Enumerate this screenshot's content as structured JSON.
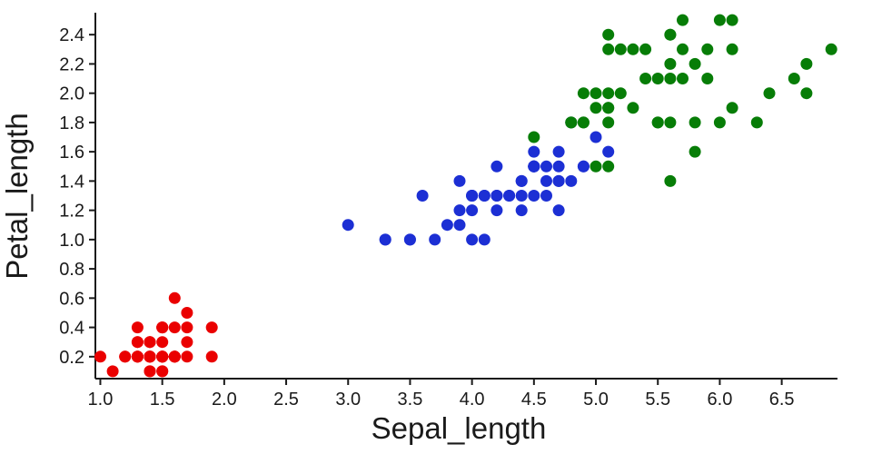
{
  "chart_data": {
    "type": "scatter",
    "title": "",
    "xlabel": "Sepal_length",
    "ylabel": "Petal_length",
    "xlim": [
      0.96,
      6.95
    ],
    "ylim": [
      0.05,
      2.55
    ],
    "x_ticks": [
      "1.0",
      "1.5",
      "2.0",
      "2.5",
      "3.0",
      "3.5",
      "4.0",
      "4.5",
      "5.0",
      "5.5",
      "6.0",
      "6.5"
    ],
    "y_ticks": [
      "0.2",
      "0.4",
      "0.6",
      "0.8",
      "1.0",
      "1.2",
      "1.4",
      "1.6",
      "1.8",
      "2.0",
      "2.2",
      "2.4"
    ],
    "grid": false,
    "legend_visible": false,
    "background_color": "#ffffff",
    "axis_color": "#1a1a1a",
    "tick_label_color": "#1a1a1a",
    "tick_label_font_px": 20,
    "marker_diameter_px": 13,
    "series": [
      {
        "name": "red",
        "color": "#ea0000",
        "points": [
          [
            1.4,
            0.2
          ],
          [
            1.4,
            0.2
          ],
          [
            1.3,
            0.2
          ],
          [
            1.5,
            0.2
          ],
          [
            1.4,
            0.2
          ],
          [
            1.7,
            0.4
          ],
          [
            1.4,
            0.3
          ],
          [
            1.5,
            0.2
          ],
          [
            1.4,
            0.2
          ],
          [
            1.5,
            0.1
          ],
          [
            1.5,
            0.2
          ],
          [
            1.6,
            0.2
          ],
          [
            1.4,
            0.1
          ],
          [
            1.1,
            0.1
          ],
          [
            1.2,
            0.2
          ],
          [
            1.5,
            0.4
          ],
          [
            1.3,
            0.4
          ],
          [
            1.4,
            0.3
          ],
          [
            1.7,
            0.3
          ],
          [
            1.5,
            0.3
          ],
          [
            1.7,
            0.2
          ],
          [
            1.5,
            0.4
          ],
          [
            1.0,
            0.2
          ],
          [
            1.7,
            0.5
          ],
          [
            1.9,
            0.2
          ],
          [
            1.6,
            0.2
          ],
          [
            1.6,
            0.4
          ],
          [
            1.5,
            0.2
          ],
          [
            1.4,
            0.2
          ],
          [
            1.6,
            0.2
          ],
          [
            1.6,
            0.2
          ],
          [
            1.5,
            0.4
          ],
          [
            1.5,
            0.1
          ],
          [
            1.4,
            0.2
          ],
          [
            1.5,
            0.2
          ],
          [
            1.2,
            0.2
          ],
          [
            1.3,
            0.2
          ],
          [
            1.4,
            0.1
          ],
          [
            1.3,
            0.2
          ],
          [
            1.5,
            0.2
          ],
          [
            1.3,
            0.3
          ],
          [
            1.3,
            0.3
          ],
          [
            1.3,
            0.2
          ],
          [
            1.6,
            0.6
          ],
          [
            1.9,
            0.4
          ],
          [
            1.4,
            0.3
          ],
          [
            1.6,
            0.2
          ],
          [
            1.4,
            0.2
          ],
          [
            1.5,
            0.2
          ],
          [
            1.4,
            0.2
          ]
        ]
      },
      {
        "name": "blue",
        "color": "#1c2fd4",
        "points": [
          [
            4.7,
            1.4
          ],
          [
            4.5,
            1.5
          ],
          [
            4.9,
            1.5
          ],
          [
            4.0,
            1.3
          ],
          [
            4.6,
            1.5
          ],
          [
            4.5,
            1.3
          ],
          [
            4.7,
            1.6
          ],
          [
            3.3,
            1.0
          ],
          [
            4.6,
            1.3
          ],
          [
            3.9,
            1.4
          ],
          [
            3.5,
            1.0
          ],
          [
            4.2,
            1.5
          ],
          [
            4.0,
            1.0
          ],
          [
            4.7,
            1.4
          ],
          [
            3.6,
            1.3
          ],
          [
            4.4,
            1.4
          ],
          [
            4.5,
            1.5
          ],
          [
            4.1,
            1.0
          ],
          [
            4.5,
            1.5
          ],
          [
            3.9,
            1.1
          ],
          [
            4.8,
            1.8
          ],
          [
            4.0,
            1.3
          ],
          [
            4.9,
            1.5
          ],
          [
            4.7,
            1.2
          ],
          [
            4.3,
            1.3
          ],
          [
            4.4,
            1.4
          ],
          [
            4.8,
            1.4
          ],
          [
            5.0,
            1.7
          ],
          [
            4.5,
            1.5
          ],
          [
            3.5,
            1.0
          ],
          [
            3.8,
            1.1
          ],
          [
            3.7,
            1.0
          ],
          [
            3.9,
            1.2
          ],
          [
            5.1,
            1.6
          ],
          [
            4.5,
            1.5
          ],
          [
            4.5,
            1.6
          ],
          [
            4.7,
            1.5
          ],
          [
            4.4,
            1.3
          ],
          [
            4.1,
            1.3
          ],
          [
            4.0,
            1.3
          ],
          [
            4.4,
            1.2
          ],
          [
            4.6,
            1.4
          ],
          [
            4.0,
            1.2
          ],
          [
            3.3,
            1.0
          ],
          [
            4.2,
            1.3
          ],
          [
            4.2,
            1.2
          ],
          [
            4.2,
            1.3
          ],
          [
            4.3,
            1.3
          ],
          [
            3.0,
            1.1
          ],
          [
            4.1,
            1.3
          ]
        ]
      },
      {
        "name": "green",
        "color": "#077d07",
        "points": [
          [
            6.0,
            2.5
          ],
          [
            5.1,
            1.9
          ],
          [
            5.9,
            2.1
          ],
          [
            5.6,
            1.8
          ],
          [
            5.8,
            2.2
          ],
          [
            6.6,
            2.1
          ],
          [
            4.5,
            1.7
          ],
          [
            6.3,
            1.8
          ],
          [
            5.8,
            1.8
          ],
          [
            6.1,
            2.5
          ],
          [
            5.1,
            2.0
          ],
          [
            5.3,
            1.9
          ],
          [
            5.5,
            2.1
          ],
          [
            5.0,
            2.0
          ],
          [
            5.1,
            2.4
          ],
          [
            5.3,
            2.3
          ],
          [
            5.5,
            1.8
          ],
          [
            6.7,
            2.2
          ],
          [
            6.9,
            2.3
          ],
          [
            5.0,
            1.5
          ],
          [
            5.7,
            2.3
          ],
          [
            4.9,
            2.0
          ],
          [
            6.7,
            2.0
          ],
          [
            4.9,
            1.8
          ],
          [
            5.7,
            2.1
          ],
          [
            6.0,
            1.8
          ],
          [
            4.8,
            1.8
          ],
          [
            4.9,
            1.8
          ],
          [
            5.6,
            2.1
          ],
          [
            5.8,
            1.6
          ],
          [
            6.1,
            1.9
          ],
          [
            6.4,
            2.0
          ],
          [
            5.6,
            2.2
          ],
          [
            5.1,
            1.5
          ],
          [
            5.6,
            1.4
          ],
          [
            6.1,
            2.3
          ],
          [
            5.6,
            2.4
          ],
          [
            5.5,
            1.8
          ],
          [
            4.8,
            1.8
          ],
          [
            5.4,
            2.1
          ],
          [
            5.6,
            2.4
          ],
          [
            5.1,
            2.3
          ],
          [
            5.1,
            1.9
          ],
          [
            5.9,
            2.3
          ],
          [
            5.7,
            2.5
          ],
          [
            5.2,
            2.3
          ],
          [
            5.0,
            1.9
          ],
          [
            5.2,
            2.0
          ],
          [
            5.4,
            2.3
          ],
          [
            5.1,
            1.8
          ]
        ]
      }
    ]
  }
}
